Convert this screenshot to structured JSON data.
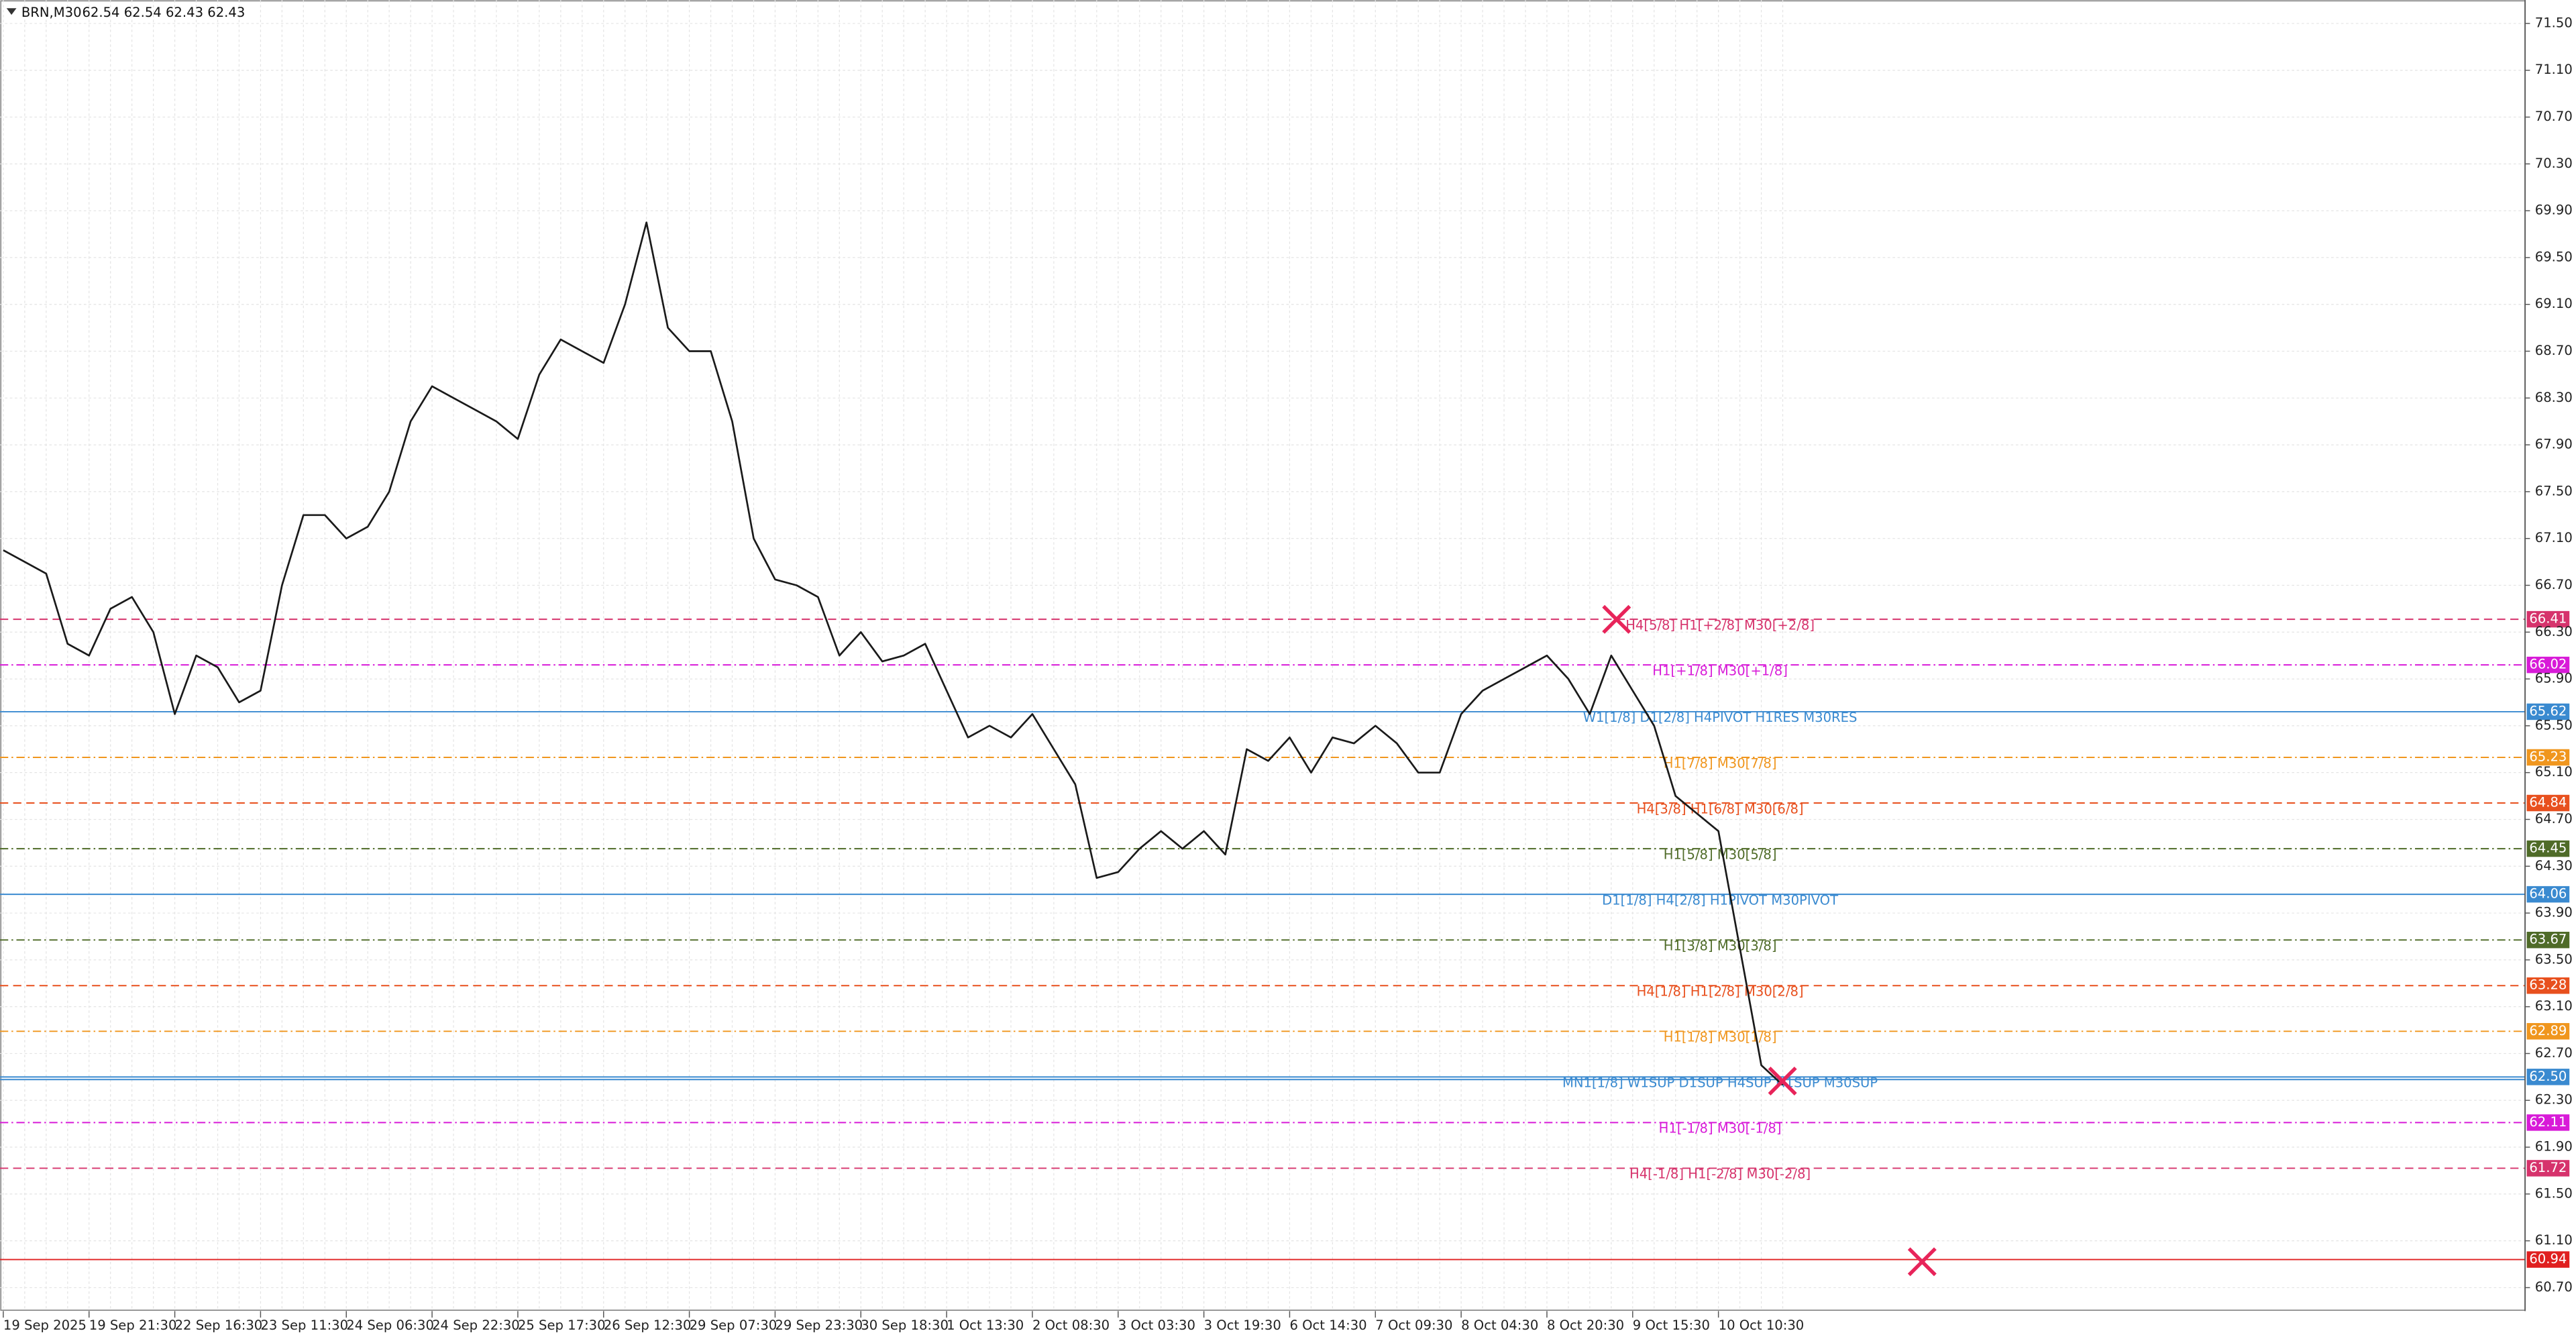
{
  "chart_data": {
    "type": "line",
    "title": "BRN,M30",
    "subtitle": "62.54 62.54 62.43 62.43",
    "categories": [
      "19 Sep 2025",
      null,
      null,
      null,
      "19 Sep 21:30",
      null,
      null,
      null,
      "22 Sep 16:30",
      null,
      null,
      null,
      "23 Sep 11:30",
      null,
      null,
      null,
      "24 Sep 06:30",
      null,
      null,
      null,
      "24 Sep 22:30",
      null,
      null,
      null,
      "25 Sep 17:30",
      null,
      null,
      null,
      "26 Sep 12:30",
      null,
      null,
      null,
      "29 Sep 07:30",
      null,
      null,
      null,
      "29 Sep 23:30",
      null,
      null,
      null,
      "30 Sep 18:30",
      null,
      null,
      null,
      "1 Oct 13:30",
      null,
      null,
      null,
      "2 Oct 08:30",
      null,
      null,
      null,
      "3 Oct 03:30",
      null,
      null,
      null,
      "3 Oct 19:30",
      null,
      null,
      null,
      "6 Oct 14:30",
      null,
      null,
      null,
      "7 Oct 09:30",
      null,
      null,
      null,
      "8 Oct 04:30",
      null,
      null,
      null,
      "8 Oct 20:30",
      null,
      null,
      null,
      "9 Oct 15:30",
      null,
      null,
      null,
      "10 Oct 10:30",
      null,
      null,
      null
    ],
    "series": [
      {
        "name": "BRN",
        "color": "#1a1a1a",
        "values": [
          67.0,
          66.9,
          66.8,
          66.2,
          66.1,
          66.5,
          66.6,
          66.3,
          65.6,
          66.1,
          66.0,
          65.7,
          65.8,
          66.7,
          67.3,
          67.3,
          67.1,
          67.2,
          67.5,
          68.1,
          68.4,
          68.3,
          68.2,
          68.1,
          67.95,
          68.5,
          68.8,
          68.7,
          68.6,
          69.1,
          69.8,
          68.9,
          68.7,
          68.7,
          68.1,
          67.1,
          66.75,
          66.7,
          66.6,
          66.1,
          66.3,
          66.05,
          66.1,
          66.2,
          65.8,
          65.4,
          65.5,
          65.4,
          65.6,
          65.3,
          65.0,
          64.2,
          64.25,
          64.45,
          64.6,
          64.45,
          64.6,
          64.4,
          65.3,
          65.2,
          65.4,
          65.1,
          65.4,
          65.35,
          65.5,
          65.35,
          65.1,
          65.1,
          65.6,
          65.8,
          65.9,
          66.0,
          66.1,
          65.9,
          65.6,
          66.1,
          65.8,
          65.5,
          64.9,
          64.75,
          64.6,
          63.6,
          62.6,
          62.43
        ]
      }
    ],
    "ylim": [
      60.5,
      71.7
    ],
    "yticks": [
      {
        "value": 71.5,
        "label": "71.50"
      },
      {
        "value": 71.1,
        "label": "71.10"
      },
      {
        "value": 70.7,
        "label": "70.70"
      },
      {
        "value": 70.3,
        "label": "70.30"
      },
      {
        "value": 69.9,
        "label": "69.90"
      },
      {
        "value": 69.5,
        "label": "69.50"
      },
      {
        "value": 69.1,
        "label": "69.10"
      },
      {
        "value": 68.7,
        "label": "68.70"
      },
      {
        "value": 68.3,
        "label": "68.30"
      },
      {
        "value": 67.9,
        "label": "67.90"
      },
      {
        "value": 67.5,
        "label": "67.50"
      },
      {
        "value": 67.1,
        "label": "67.10"
      },
      {
        "value": 66.7,
        "label": "66.70"
      },
      {
        "value": 66.3,
        "label": "66.30"
      },
      {
        "value": 65.9,
        "label": "65.90"
      },
      {
        "value": 65.5,
        "label": "65.50"
      },
      {
        "value": 65.1,
        "label": "65.10"
      },
      {
        "value": 64.7,
        "label": "64.70"
      },
      {
        "value": 64.3,
        "label": "64.30"
      },
      {
        "value": 63.9,
        "label": "63.90"
      },
      {
        "value": 63.5,
        "label": "63.50"
      },
      {
        "value": 63.1,
        "label": "63.10"
      },
      {
        "value": 62.7,
        "label": "62.70"
      },
      {
        "value": 62.3,
        "label": "62.30"
      },
      {
        "value": 61.9,
        "label": "61.90"
      },
      {
        "value": 61.5,
        "label": "61.50"
      },
      {
        "value": 61.1,
        "label": "61.10"
      },
      {
        "value": 60.7,
        "label": "60.70"
      }
    ],
    "grid": true,
    "levels": [
      {
        "value": 66.41,
        "label": "H4[5/8] H1[+2/8] M30[+2/8]",
        "color": "#d6336c",
        "style": "dash"
      },
      {
        "value": 66.02,
        "label": "H1[+1/8] M30[+1/8]",
        "color": "#d81bd8",
        "style": "dashdot"
      },
      {
        "value": 65.62,
        "label": "W1[1/8] D1[2/8] H4PIVOT H1RES M30RES",
        "color": "#3a8ad0",
        "style": "solid"
      },
      {
        "value": 65.23,
        "label": "H1[7/8] M30[7/8]",
        "color": "#f0961e",
        "style": "dashdot"
      },
      {
        "value": 64.84,
        "label": "H4[3/8] H1[6/8] M30[6/8]",
        "color": "#e8501e",
        "style": "dash"
      },
      {
        "value": 64.45,
        "label": "H1[5/8] M30[5/8]",
        "color": "#4f6b28",
        "style": "dashdot"
      },
      {
        "value": 64.06,
        "label": "D1[1/8] H4[2/8] H1PIVOT M30PIVOT",
        "color": "#3a8ad0",
        "style": "solid"
      },
      {
        "value": 63.67,
        "label": "H1[3/8] M30[3/8]",
        "color": "#4f6b28",
        "style": "dashdot"
      },
      {
        "value": 63.28,
        "label": "H4[1/8] H1[2/8] M30[2/8]",
        "color": "#e8501e",
        "style": "dash"
      },
      {
        "value": 62.89,
        "label": "H1[1/8] M30[1/8]",
        "color": "#f0961e",
        "style": "dashdot"
      },
      {
        "value": 62.5,
        "value_label": "62.50",
        "label": "MN1[1/8] W1SUP D1SUP H4SUP H1SUP M30SUP",
        "color": "#3a8ad0",
        "style": "double"
      },
      {
        "value": 62.11,
        "label": "H1[-1/8] M30[-1/8]",
        "color": "#d81bd8",
        "style": "dashdot"
      },
      {
        "value": 61.72,
        "label": "H4[-1/8] H1[-2/8] M30[-2/8]",
        "color": "#d6336c",
        "style": "dash"
      },
      {
        "value": 60.94,
        "color": "#e02020",
        "style": "solid"
      }
    ]
  }
}
